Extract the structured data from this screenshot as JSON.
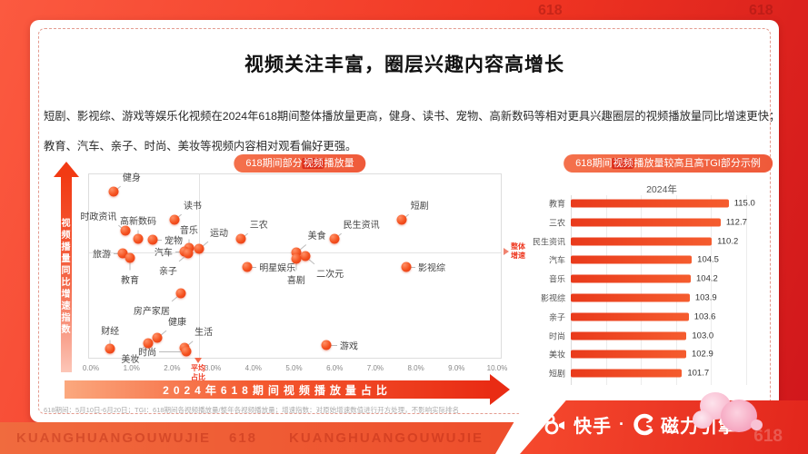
{
  "header": {
    "title": "视频关注丰富，圈层兴趣内容高增长"
  },
  "summary": {
    "line1": "短剧、影视综、游戏等娱乐化视频在2024年618期间整体播放量更高，健身、读书、宠物、高新数码等相对更具兴趣圈层的视频播放量同比增速更快；",
    "line2": "教育、汽车、亲子、时尚、美妆等视频内容相对观看偏好更强。"
  },
  "chart_data": [
    {
      "type": "scatter",
      "badge": {
        "prefix": "618期间部分",
        "highlight": "视频",
        "suffix": "播放量"
      },
      "xlabel": "2024年618期间视频播放量占比",
      "ylabel": "视频播量同比增速指数",
      "x_ticks": [
        "0.0%",
        "1.0%",
        "2.0%",
        "3.0%",
        "4.0%",
        "5.0%",
        "6.0%",
        "7.0%",
        "8.0%",
        "9.0%",
        "10.0%"
      ],
      "x_range": [
        0,
        10
      ],
      "avg_share_marker": {
        "label": "平均占比",
        "x": 2.65
      },
      "overall_growth_marker": {
        "label": "整体增速",
        "y": 58
      },
      "points": [
        {
          "label": "健身",
          "x": 0.54,
          "y": 90.7,
          "lp": "tr"
        },
        {
          "label": "时政资讯",
          "x": 0.83,
          "y": 69.6,
          "lp": "tl"
        },
        {
          "label": "高新数码",
          "x": 1.14,
          "y": 65.2,
          "lp": "t"
        },
        {
          "label": "读书",
          "x": 2.04,
          "y": 75.5,
          "lp": "tr"
        },
        {
          "label": "宠物",
          "x": 1.5,
          "y": 64.7,
          "lp": "r"
        },
        {
          "label": "旅游",
          "x": 0.76,
          "y": 57.4,
          "lp": "l"
        },
        {
          "label": "教育",
          "x": 0.94,
          "y": 54.9,
          "lp": "b",
          "ll": 13
        },
        {
          "label": "音乐",
          "x": 2.39,
          "y": 60.3,
          "lp": "t"
        },
        {
          "label": "汽车",
          "x": 2.28,
          "y": 58.3,
          "lp": "l"
        },
        {
          "label": "运动",
          "x": 2.64,
          "y": 59.8,
          "lp": "tr",
          "ll": 13
        },
        {
          "label": "亲子",
          "x": 2.37,
          "y": 57.4,
          "lp": "bl",
          "ll": 13
        },
        {
          "label": "三农",
          "x": 3.67,
          "y": 65.2,
          "lp": "tr"
        },
        {
          "label": "民生资讯",
          "x": 5.97,
          "y": 65.2,
          "lp": "tr"
        },
        {
          "label": "短剧",
          "x": 7.63,
          "y": 75.5,
          "lp": "tr"
        },
        {
          "label": "美食",
          "x": 5.03,
          "y": 57.8,
          "lp": "tr",
          "ll": 14
        },
        {
          "label": "二次元",
          "x": 5.26,
          "y": 55.9,
          "lp": "br",
          "ll": 13
        },
        {
          "label": "喜剧",
          "x": 5.03,
          "y": 54.4,
          "lp": "b",
          "ll": 12
        },
        {
          "label": "明星娱乐",
          "x": 3.83,
          "y": 50,
          "lp": "r"
        },
        {
          "label": "影视综",
          "x": 7.74,
          "y": 50,
          "lp": "r"
        },
        {
          "label": "房产家居",
          "x": 2.19,
          "y": 35.8,
          "lp": "bl",
          "ll": 13
        },
        {
          "label": "健康",
          "x": 1.61,
          "y": 11.8,
          "lp": "tr",
          "ll": 13
        },
        {
          "label": "美妆",
          "x": 1.39,
          "y": 8.8,
          "lp": "bl"
        },
        {
          "label": "财经",
          "x": 0.45,
          "y": 5.9,
          "lp": "t"
        },
        {
          "label": "生活",
          "x": 2.28,
          "y": 6.4,
          "lp": "tr",
          "ll": 12
        },
        {
          "label": "时尚",
          "x": 2.33,
          "y": 4.4,
          "lp": "l",
          "ll": 30
        },
        {
          "label": "游戏",
          "x": 5.77,
          "y": 7.8,
          "lp": "r",
          "ll": 12
        }
      ]
    },
    {
      "type": "bar",
      "orientation": "horizontal",
      "badge": {
        "prefix": "618期间",
        "highlight": "视频",
        "suffix": "播放量较高且高TGI部分示例"
      },
      "title": "2024年",
      "categories": [
        "教育",
        "三农",
        "民生资讯",
        "汽车",
        "音乐",
        "影视综",
        "亲子",
        "时尚",
        "美妆",
        "短剧"
      ],
      "values": [
        115.0,
        112.7,
        110.2,
        104.5,
        104.2,
        103.9,
        103.6,
        103.0,
        102.9,
        101.7
      ],
      "value_labels": [
        "115.0",
        "112.7",
        "110.2",
        "104.5",
        "104.2",
        "103.9",
        "103.6",
        "103.0",
        "102.9",
        "101.7"
      ],
      "xlim": [
        70,
        120
      ],
      "grid": true
    }
  ],
  "footnote": "618期间：5月10日-6月20日；TGI：618期间各视频播放量/整年各视频播放量；增速指数：对原始增速数值进行开方处理，不影响实际排名",
  "footer": {
    "kuaishou": "快手",
    "separator": "·",
    "engine": "磁力引擎"
  },
  "watermarks": {
    "top_a": "618",
    "top_b": "618",
    "bottom_left": "KUANGHUANGOUWUJIE",
    "bottom_mid": "618",
    "bottom_left2": "KUANGHUANGOUWUJIE",
    "bottom_right": "618"
  },
  "colors": {
    "accent": "#ee3a22",
    "badge_bg": "#f2674a",
    "badge_highlight": "#dd2f1b",
    "bar_fill": "#f04f24",
    "dot_fill": "#f4511e",
    "band_red": "#e92c14"
  }
}
